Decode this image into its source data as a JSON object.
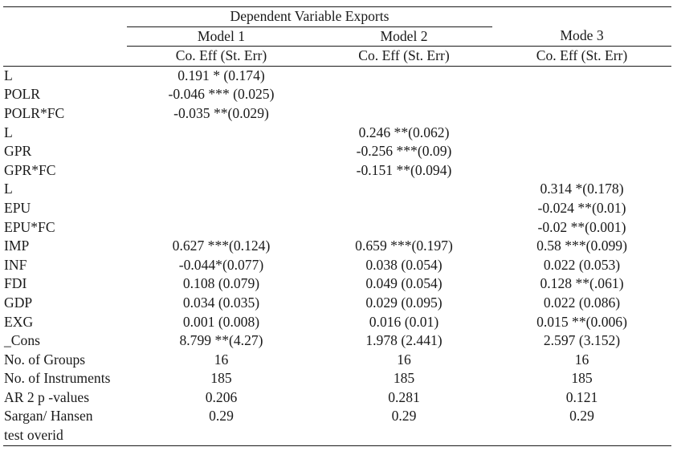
{
  "header": {
    "dependent_variable": "Dependent Variable Exports",
    "models": [
      "Model 1",
      "Model 2",
      "Mode 3"
    ],
    "subheader": [
      "Co. Eff (St. Err)",
      "Co. Eff (St. Err)",
      "Co. Eff (St. Err)"
    ]
  },
  "rows": [
    {
      "label": "L",
      "m1": "0.191 * (0.174)",
      "m2": "",
      "m3": ""
    },
    {
      "label": "POLR",
      "m1": "-0.046 *** (0.025)",
      "m2": "",
      "m3": ""
    },
    {
      "label": "POLR*FC",
      "m1": "-0.035 **(0.029)",
      "m2": "",
      "m3": ""
    },
    {
      "label": "L",
      "m1": "",
      "m2": "0.246 **(0.062)",
      "m3": ""
    },
    {
      "label": "GPR",
      "m1": "",
      "m2": "-0.256 ***(0.09)",
      "m3": ""
    },
    {
      "label": "GPR*FC",
      "m1": "",
      "m2": "-0.151 **(0.094)",
      "m3": ""
    },
    {
      "label": "L",
      "m1": "",
      "m2": "",
      "m3": "0.314 *(0.178)"
    },
    {
      "label": "EPU",
      "m1": "",
      "m2": "",
      "m3": "-0.024 **(0.01)"
    },
    {
      "label": "EPU*FC",
      "m1": "",
      "m2": "",
      "m3": "-0.02 **(0.001)"
    },
    {
      "label": "IMP",
      "m1": "0.627 ***(0.124)",
      "m2": "0.659 ***(0.197)",
      "m3": "0.58 ***(0.099)"
    },
    {
      "label": "INF",
      "m1": "-0.044*(0.077)",
      "m2": "0.038 (0.054)",
      "m3": "0.022 (0.053)"
    },
    {
      "label": "FDI",
      "m1": "0.108 (0.079)",
      "m2": "0.049 (0.054)",
      "m3": "0.128 **(.061)"
    },
    {
      "label": "GDP",
      "m1": "0.034 (0.035)",
      "m2": "0.029 (0.095)",
      "m3": "0.022 (0.086)"
    },
    {
      "label": "EXG",
      "m1": "0.001 (0.008)",
      "m2": "0.016 (0.01)",
      "m3": "0.015 **(0.006)"
    },
    {
      "label": "_Cons",
      "m1": "8.799 **(4.27)",
      "m2": "1.978 (2.441)",
      "m3": "2.597 (3.152)"
    },
    {
      "label": "No. of Groups",
      "m1": "16",
      "m2": "16",
      "m3": "16"
    },
    {
      "label": "No. of Instruments",
      "m1": "185",
      "m2": "185",
      "m3": "185"
    },
    {
      "label": "AR 2 p -values",
      "m1": "0.206",
      "m2": "0.281",
      "m3": "0.121"
    }
  ],
  "last_row": {
    "label_line1": "Sargan/ Hansen",
    "label_line2": "test overid",
    "m1": "0.29",
    "m2": "0.29",
    "m3": "0.29"
  }
}
